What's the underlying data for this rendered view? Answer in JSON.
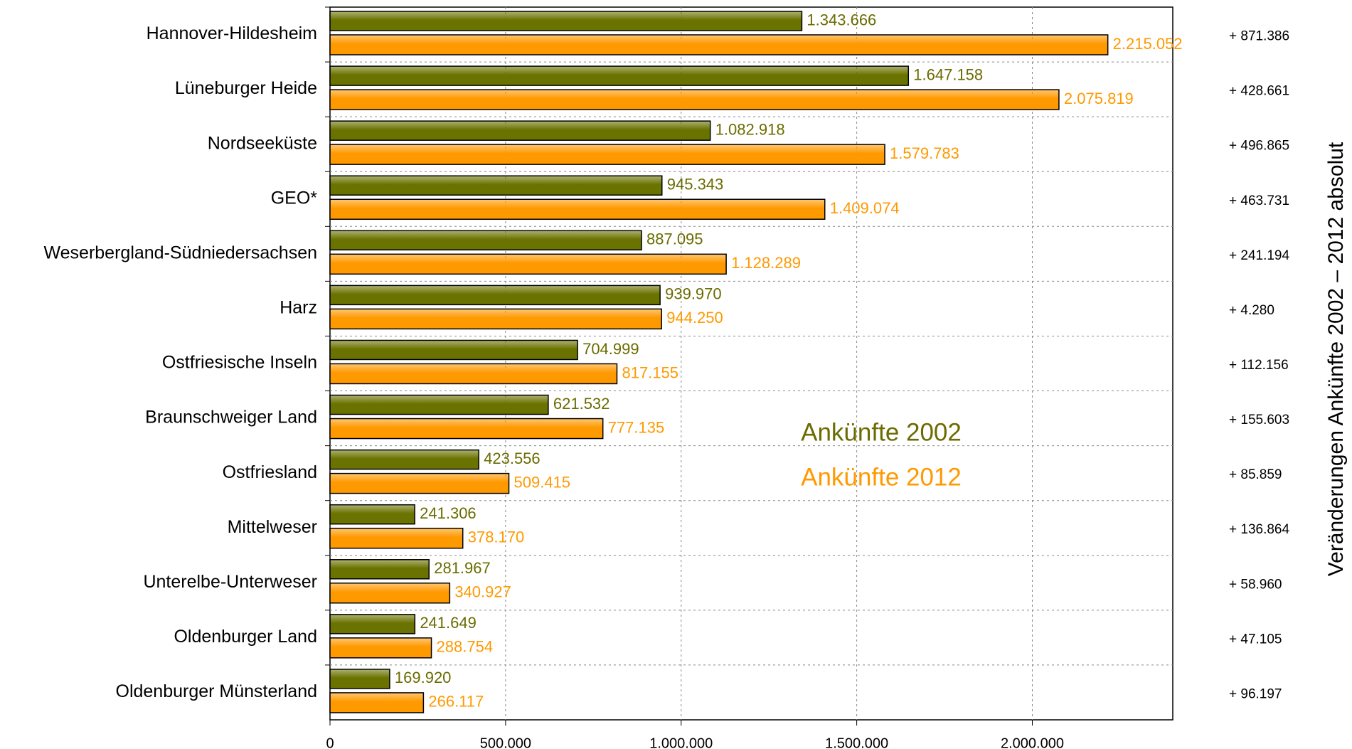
{
  "chart_data": {
    "type": "bar",
    "orientation": "horizontal",
    "categories": [
      "Hannover-Hildesheim",
      "Lüneburger Heide",
      "Nordseeküste",
      "GEO*",
      "Weserbergland-Südniedersachsen",
      "Harz",
      "Ostfriesische Inseln",
      "Braunschweiger Land",
      "Ostfriesland",
      "Mittelweser",
      "Unterelbe-Unterweser",
      "Oldenburger Land",
      "Oldenburger Münsterland"
    ],
    "series": [
      {
        "name": "Ankünfte 2002",
        "color": "#6b7300",
        "values": [
          1343666,
          1647158,
          1082918,
          945343,
          887095,
          939970,
          704999,
          621532,
          423556,
          241306,
          281967,
          241649,
          169920
        ],
        "value_labels": [
          "1.343.666",
          "1.647.158",
          "1.082.918",
          "945.343",
          "887.095",
          "939.970",
          "704.999",
          "621.532",
          "423.556",
          "241.306",
          "281.967",
          "241.649",
          "169.920"
        ]
      },
      {
        "name": "Ankünfte 2012",
        "color": "#ff9900",
        "values": [
          2215052,
          2075819,
          1579783,
          1409074,
          1128289,
          944250,
          817155,
          777135,
          509415,
          378170,
          340927,
          288754,
          266117
        ],
        "value_labels": [
          "2.215.052",
          "2.075.819",
          "1.579.783",
          "1.409.074",
          "1.128.289",
          "944.250",
          "817.155",
          "777.135",
          "509.415",
          "378.170",
          "340.927",
          "288.754",
          "266.117"
        ]
      }
    ],
    "change_labels": [
      "+ 871.386",
      "+ 428.661",
      "+ 496.865",
      "+ 463.731",
      "+ 241.194",
      "+ 4.280",
      "+ 112.156",
      "+ 155.603",
      "+ 85.859",
      "+ 136.864",
      "+ 58.960",
      "+ 47.105",
      "+ 96.197"
    ],
    "y2_label": "Veränderungen Ankünfte 2002 – 2012 absolut",
    "xlim": [
      0,
      2400000
    ],
    "xticks": [
      0,
      {
        "value": 500000,
        "label": "500.000"
      },
      {
        "value": 1000000,
        "label": "1.000.000"
      },
      {
        "value": 1500000,
        "label": "1.500.000"
      },
      {
        "value": 2000000,
        "label": "2.000.000"
      }
    ],
    "grid": true
  }
}
